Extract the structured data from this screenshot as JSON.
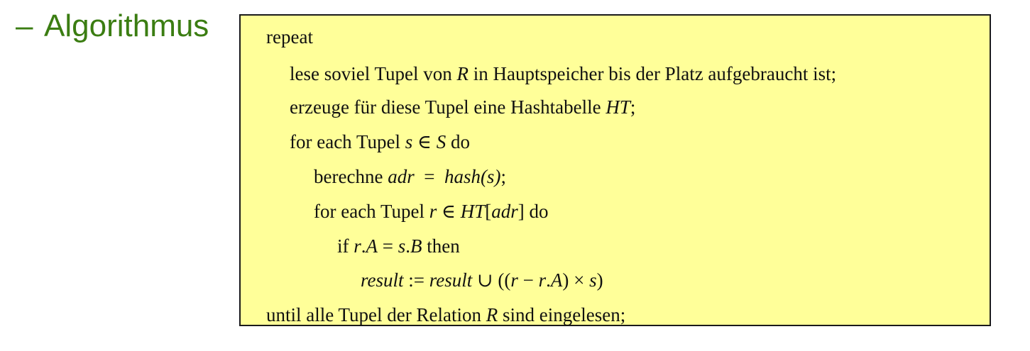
{
  "bullet": {
    "dash": "–",
    "label": "Algorithmus"
  },
  "code": {
    "l1": {
      "t1": "repeat"
    },
    "l2": {
      "t1": "lese soviel Tupel von ",
      "v1": "R",
      "t2": " in Hauptspeicher bis der Platz aufgebraucht ist;"
    },
    "l3": {
      "t1": "erzeuge für diese Tupel eine Hashtabelle ",
      "v1": "HT",
      "t2": ";"
    },
    "l4": {
      "t1": "for each Tupel ",
      "v1": "s",
      "t2": " ∈ ",
      "v2": "S",
      "t3": " do"
    },
    "l5": {
      "t1": "berechne ",
      "v1": "adr",
      "t2": "  =  ",
      "v2": "hash(s)",
      "t3": ";"
    },
    "l6": {
      "t1": "for each Tupel ",
      "v1": "r",
      "t2": " ∈ ",
      "v2": "HT",
      "t3": "[",
      "v3": "adr",
      "t4": "] do"
    },
    "l7": {
      "t1": "if ",
      "v1": "r",
      "t2": ".",
      "v2": "A",
      "t3": " = ",
      "v3": "s",
      "t4": ".",
      "v4": "B",
      "t5": " then"
    },
    "l8": {
      "v1": "result",
      "t1": " := ",
      "v2": "result",
      "t2": " ∪ ((",
      "v3": "r",
      "t3": " − ",
      "v4": "r",
      "t4": ".",
      "v5": "A",
      "t5": ") × ",
      "v6": "s",
      "t6": ")"
    },
    "l9": {
      "t1": "until alle Tupel der Relation ",
      "v1": "R",
      "t2": " sind eingelesen;"
    }
  }
}
